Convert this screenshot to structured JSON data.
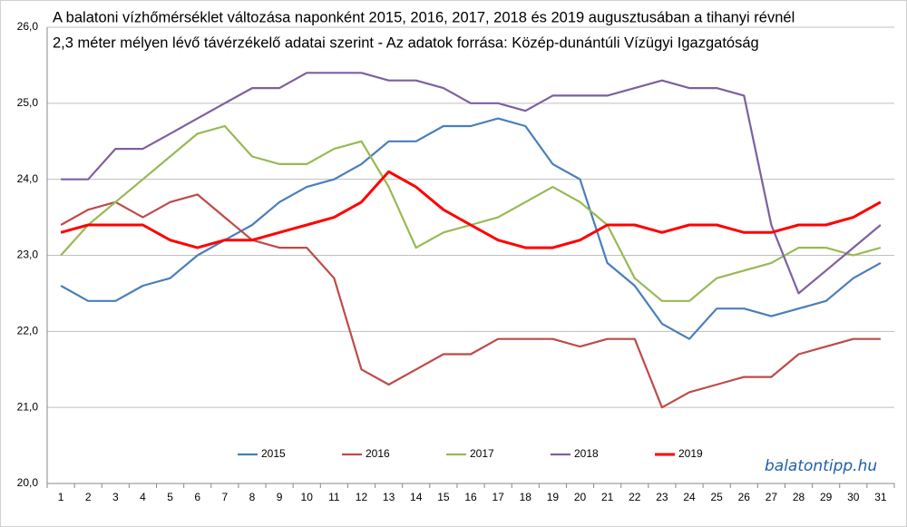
{
  "chart_data": {
    "type": "line",
    "title": [
      "A balatoni vízhőmérséklet változása naponként 2015, 2016, 2017, 2018 és 2019 augusztusában a tihanyi révnél",
      "2,3 méter mélyen lévő távérzékelő adatai szerint - Az adatok forrása: Közép-dunántúli Vízügyi Igazgatóság"
    ],
    "watermark": "balatontipp.hu",
    "categories": [
      "1",
      "2",
      "3",
      "4",
      "5",
      "6",
      "7",
      "8",
      "9",
      "10",
      "11",
      "12",
      "13",
      "14",
      "15",
      "16",
      "17",
      "18",
      "19",
      "20",
      "21",
      "22",
      "23",
      "24",
      "25",
      "26",
      "27",
      "28",
      "29",
      "30",
      "31"
    ],
    "series": [
      {
        "name": "2015",
        "color": "#4a7ebb",
        "values": [
          22.6,
          22.4,
          22.4,
          22.6,
          22.7,
          23.0,
          23.2,
          23.4,
          23.7,
          23.9,
          24.0,
          24.2,
          24.5,
          24.5,
          24.7,
          24.7,
          24.8,
          24.7,
          24.2,
          24.0,
          22.9,
          22.6,
          22.1,
          21.9,
          22.3,
          22.3,
          22.2,
          22.3,
          22.4,
          22.7,
          22.9
        ]
      },
      {
        "name": "2016",
        "color": "#be4b48",
        "values": [
          23.4,
          23.6,
          23.7,
          23.5,
          23.7,
          23.8,
          23.5,
          23.2,
          23.1,
          23.1,
          22.7,
          21.5,
          21.3,
          21.5,
          21.7,
          21.7,
          21.9,
          21.9,
          21.9,
          21.8,
          21.9,
          21.9,
          21.0,
          21.2,
          21.3,
          21.4,
          21.4,
          21.7,
          21.8,
          21.9,
          21.9
        ]
      },
      {
        "name": "2017",
        "color": "#98b954",
        "values": [
          23.0,
          23.4,
          23.7,
          24.0,
          24.3,
          24.6,
          24.7,
          24.3,
          24.2,
          24.2,
          24.4,
          24.5,
          23.9,
          23.1,
          23.3,
          23.4,
          23.5,
          23.7,
          23.9,
          23.7,
          23.4,
          22.7,
          22.4,
          22.4,
          22.7,
          22.8,
          22.9,
          23.1,
          23.1,
          23.0,
          23.1
        ]
      },
      {
        "name": "2018",
        "color": "#7d60a0",
        "values": [
          24.0,
          24.0,
          24.4,
          24.4,
          24.6,
          24.8,
          25.0,
          25.2,
          25.2,
          25.4,
          25.4,
          25.4,
          25.3,
          25.3,
          25.2,
          25.0,
          25.0,
          24.9,
          25.1,
          25.1,
          25.1,
          25.2,
          25.3,
          25.2,
          25.2,
          25.1,
          23.4,
          22.5,
          22.8,
          23.1,
          23.4
        ]
      },
      {
        "name": "2019",
        "color": "#ff0000",
        "values": [
          23.3,
          23.4,
          23.4,
          23.4,
          23.2,
          23.1,
          23.2,
          23.2,
          23.3,
          23.4,
          23.5,
          23.7,
          24.1,
          23.9,
          23.6,
          23.4,
          23.2,
          23.1,
          23.1,
          23.2,
          23.4,
          23.4,
          23.3,
          23.4,
          23.4,
          23.3,
          23.3,
          23.4,
          23.4,
          23.5,
          23.7
        ]
      }
    ],
    "ylim": [
      20,
      26
    ],
    "yticks": [
      {
        "value": 20,
        "label": "20,0"
      },
      {
        "value": 21,
        "label": "21,0"
      },
      {
        "value": 22,
        "label": "22,0"
      },
      {
        "value": 23,
        "label": "23,0"
      },
      {
        "value": 24,
        "label": "24,0"
      },
      {
        "value": 25,
        "label": "25,0"
      },
      {
        "value": 26,
        "label": "26,0"
      }
    ],
    "grid": true,
    "legend": "bottom"
  }
}
